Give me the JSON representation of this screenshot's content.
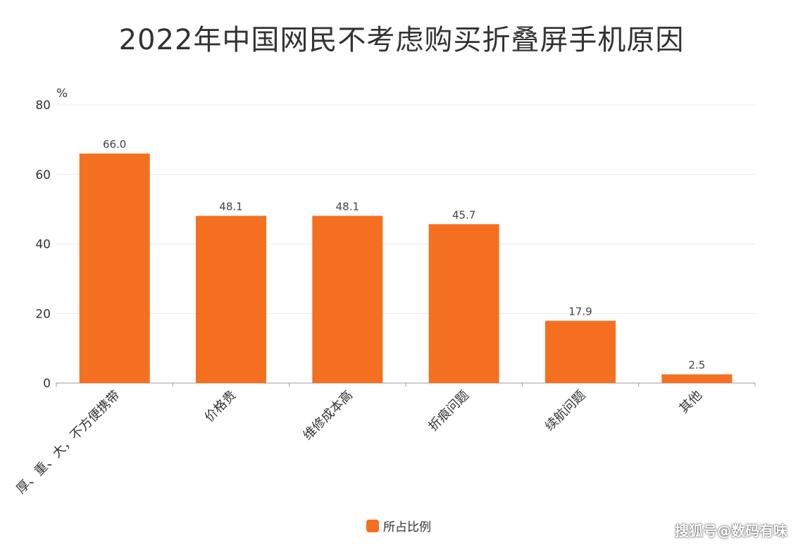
{
  "chart_data": {
    "type": "bar",
    "title": "2022年中国网民不考虑购买折叠屏手机原因",
    "ylabel": "%",
    "xlabel": "",
    "ylim": [
      0,
      80
    ],
    "yticks": [
      0,
      20,
      40,
      60,
      80
    ],
    "categories": [
      "厚、重、大，不方便携带",
      "价格贵",
      "维修成本高",
      "折痕问题",
      "续航问题",
      "其他"
    ],
    "series": [
      {
        "name": "所占比例",
        "values": [
          66.0,
          48.1,
          48.1,
          45.7,
          17.9,
          2.5
        ]
      }
    ],
    "data_labels": [
      "66.0",
      "48.1",
      "48.1",
      "45.7",
      "17.9",
      "2.5"
    ],
    "bar_color": "#f47020",
    "grid": true,
    "legend_position": "bottom"
  },
  "watermark": "搜狐号@数码有味"
}
